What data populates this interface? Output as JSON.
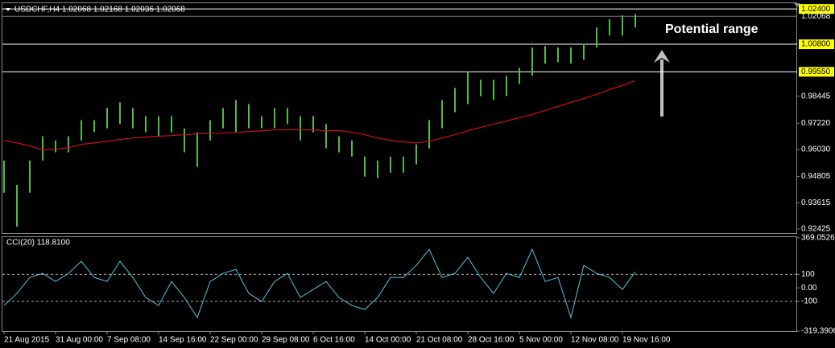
{
  "chart_data": [
    {
      "type": "range-bar",
      "title": "USDCHF,H4  1.02068 1.02168 1.02036 1.02068",
      "color": "#4fbd3f",
      "high": [
        0.9553,
        0.9443,
        0.9553,
        0.9663,
        0.9644,
        0.9663,
        0.9736,
        0.9736,
        0.9791,
        0.9816,
        0.9791,
        0.9754,
        0.9754,
        0.9754,
        0.9699,
        0.9681,
        0.9736,
        0.9791,
        0.9827,
        0.9809,
        0.9754,
        0.9791,
        0.9791,
        0.9754,
        0.9754,
        0.9718,
        0.9663,
        0.9644,
        0.9571,
        0.9553,
        0.9571,
        0.9571,
        0.9626,
        0.9736,
        0.9827,
        0.9882,
        0.9955,
        0.9919,
        0.9919,
        0.9937,
        0.9973,
        1.0065,
        1.0072,
        1.0065,
        1.0065,
        1.0083,
        1.0156,
        1.0193,
        1.0211,
        1.02168
      ],
      "low": [
        0.9407,
        0.9253,
        0.9407,
        0.9553,
        0.959,
        0.959,
        0.9644,
        0.9681,
        0.9699,
        0.9718,
        0.9699,
        0.9681,
        0.9663,
        0.9681,
        0.959,
        0.9524,
        0.9644,
        0.9699,
        0.9681,
        0.9699,
        0.9699,
        0.9699,
        0.9718,
        0.9644,
        0.9681,
        0.9608,
        0.959,
        0.9571,
        0.948,
        0.9473,
        0.9498,
        0.9498,
        0.9535,
        0.9608,
        0.9699,
        0.9772,
        0.9809,
        0.9845,
        0.9827,
        0.9845,
        0.99,
        0.9937,
        0.9992,
        0.9999,
        0.9992,
        1.001,
        1.0065,
        1.0119,
        1.0119,
        1.0156
      ],
      "ma_color": "#d01010",
      "ma_values": [
        0.9644,
        0.9633,
        0.9619,
        0.9601,
        0.9604,
        0.9611,
        0.9626,
        0.9633,
        0.964,
        0.9648,
        0.9655,
        0.9659,
        0.9663,
        0.9666,
        0.967,
        0.9674,
        0.9677,
        0.9677,
        0.9681,
        0.9684,
        0.9688,
        0.9692,
        0.9692,
        0.9692,
        0.9692,
        0.9688,
        0.9688,
        0.9681,
        0.967,
        0.9655,
        0.9644,
        0.9637,
        0.9633,
        0.964,
        0.9655,
        0.967,
        0.9688,
        0.9703,
        0.9718,
        0.9732,
        0.9747,
        0.9761,
        0.978,
        0.9798,
        0.9816,
        0.9834,
        0.9853,
        0.9875,
        0.9893,
        0.9915
      ],
      "ylim": [
        0.9224,
        1.0266
      ],
      "yticks": [
        0.92425,
        0.93615,
        0.94805,
        {
          "value": 0.9603,
          "label": "0.96030"
        },
        {
          "value": 0.9722,
          "label": "0.97220"
        },
        0.98445
      ],
      "levels": [
        {
          "value": 1.024,
          "label": "1.02400"
        },
        {
          "value": 1.008,
          "label": "1.00800"
        },
        {
          "value": 0.9955,
          "label": "0.99550"
        }
      ],
      "last_price": 1.02068,
      "annotation": "Potential range"
    },
    {
      "type": "line",
      "title": "CCI(20) 118.8100",
      "color": "#4fc8d8",
      "categories": [
        "21 Aug 2015",
        null,
        null,
        null,
        "31 Aug 00:00",
        null,
        null,
        null,
        "7 Sep 08:00",
        null,
        null,
        null,
        "14 Sep 16:00",
        null,
        null,
        null,
        "22 Sep 00:00",
        null,
        null,
        null,
        "29 Sep 08:00",
        null,
        null,
        null,
        "6 Oct 16:00",
        null,
        null,
        null,
        "14 Oct 00:00",
        null,
        null,
        null,
        "21 Oct 08:00",
        null,
        null,
        null,
        "28 Oct 16:00",
        null,
        null,
        null,
        "5 Nov 00:00",
        null,
        null,
        null,
        "12 Nov 08:00",
        null,
        null,
        null,
        "19 Nov 16:00",
        null
      ],
      "values": [
        -130,
        -41,
        77,
        107,
        47,
        107,
        196,
        77,
        47,
        196,
        77,
        -71,
        -130,
        47,
        -71,
        -219,
        47,
        107,
        136,
        -41,
        -101,
        47,
        107,
        -71,
        -12,
        47,
        -71,
        -130,
        -160,
        -71,
        77,
        77,
        166,
        285,
        77,
        107,
        225,
        77,
        -41,
        107,
        77,
        285,
        47,
        77,
        -219,
        166,
        107,
        77,
        -12,
        118.81
      ],
      "ylim": [
        -319.3906,
        369.0526
      ],
      "yticks": [
        369.0526,
        100,
        {
          "value": 0,
          "label": "0.00"
        },
        -100,
        -319.3906
      ],
      "levels": [
        100,
        -100
      ]
    }
  ]
}
